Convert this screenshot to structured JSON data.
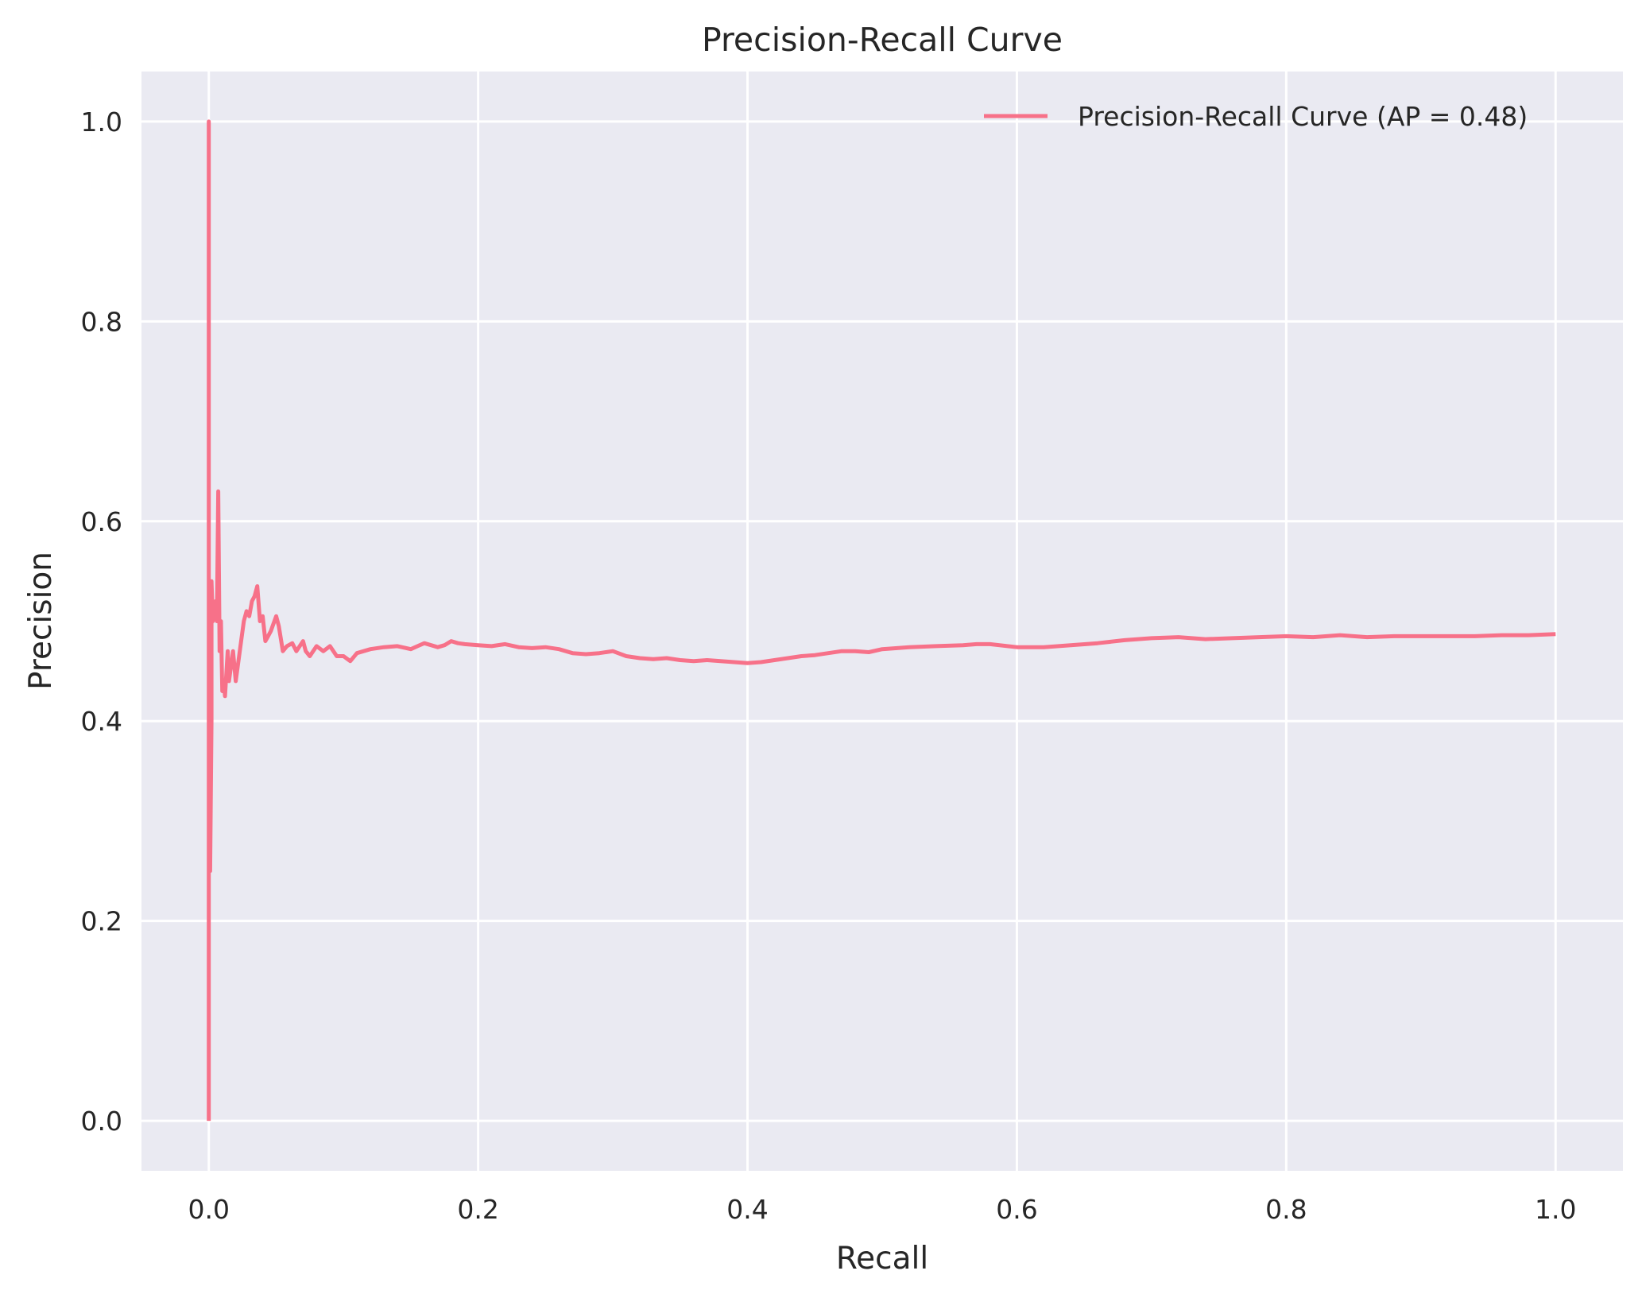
{
  "chart_data": {
    "type": "line",
    "title": "Precision-Recall Curve",
    "xlabel": "Recall",
    "ylabel": "Precision",
    "xlim": [
      -0.05,
      1.05
    ],
    "ylim": [
      -0.05,
      1.05
    ],
    "xticks": [
      0.0,
      0.2,
      0.4,
      0.6,
      0.8,
      1.0
    ],
    "yticks": [
      0.0,
      0.2,
      0.4,
      0.6,
      0.8,
      1.0
    ],
    "xtick_labels": [
      "0.0",
      "0.2",
      "0.4",
      "0.6",
      "0.8",
      "1.0"
    ],
    "ytick_labels": [
      "0.0",
      "0.2",
      "0.4",
      "0.6",
      "0.8",
      "1.0"
    ],
    "grid": true,
    "legend_position": "upper right",
    "background_color": "#eaeaf2",
    "grid_color": "#ffffff",
    "series": [
      {
        "name": "Precision-Recall Curve (AP = 0.48)",
        "color": "#f77189",
        "x": [
          0.0,
          0.0,
          0.0,
          0.001,
          0.001,
          0.002,
          0.002,
          0.003,
          0.004,
          0.005,
          0.006,
          0.007,
          0.008,
          0.009,
          0.01,
          0.011,
          0.012,
          0.014,
          0.015,
          0.016,
          0.018,
          0.02,
          0.022,
          0.024,
          0.026,
          0.028,
          0.03,
          0.032,
          0.034,
          0.036,
          0.038,
          0.04,
          0.042,
          0.044,
          0.046,
          0.05,
          0.052,
          0.055,
          0.058,
          0.062,
          0.065,
          0.07,
          0.072,
          0.075,
          0.08,
          0.085,
          0.09,
          0.095,
          0.1,
          0.105,
          0.11,
          0.115,
          0.12,
          0.13,
          0.14,
          0.15,
          0.155,
          0.16,
          0.17,
          0.175,
          0.18,
          0.185,
          0.19,
          0.2,
          0.21,
          0.22,
          0.23,
          0.24,
          0.25,
          0.26,
          0.27,
          0.28,
          0.29,
          0.3,
          0.31,
          0.32,
          0.33,
          0.34,
          0.35,
          0.36,
          0.37,
          0.38,
          0.39,
          0.4,
          0.41,
          0.42,
          0.43,
          0.44,
          0.45,
          0.46,
          0.47,
          0.48,
          0.49,
          0.5,
          0.52,
          0.54,
          0.56,
          0.57,
          0.58,
          0.6,
          0.62,
          0.64,
          0.66,
          0.68,
          0.7,
          0.72,
          0.74,
          0.76,
          0.78,
          0.8,
          0.82,
          0.84,
          0.85,
          0.86,
          0.88,
          0.9,
          0.92,
          0.94,
          0.96,
          0.98,
          1.0
        ],
        "y": [
          0.0,
          1.0,
          0.33,
          0.5,
          0.25,
          0.4,
          0.54,
          0.5,
          0.51,
          0.52,
          0.5,
          0.63,
          0.47,
          0.5,
          0.43,
          0.44,
          0.425,
          0.47,
          0.44,
          0.45,
          0.47,
          0.44,
          0.46,
          0.48,
          0.5,
          0.51,
          0.505,
          0.52,
          0.525,
          0.535,
          0.5,
          0.505,
          0.48,
          0.485,
          0.49,
          0.505,
          0.495,
          0.47,
          0.475,
          0.478,
          0.47,
          0.48,
          0.47,
          0.465,
          0.475,
          0.47,
          0.475,
          0.465,
          0.465,
          0.46,
          0.468,
          0.47,
          0.472,
          0.474,
          0.475,
          0.472,
          0.475,
          0.478,
          0.474,
          0.476,
          0.48,
          0.478,
          0.477,
          0.476,
          0.475,
          0.477,
          0.474,
          0.473,
          0.474,
          0.472,
          0.468,
          0.467,
          0.468,
          0.47,
          0.465,
          0.463,
          0.462,
          0.463,
          0.461,
          0.46,
          0.461,
          0.46,
          0.459,
          0.458,
          0.459,
          0.461,
          0.463,
          0.465,
          0.466,
          0.468,
          0.47,
          0.47,
          0.469,
          0.472,
          0.474,
          0.475,
          0.476,
          0.477,
          0.477,
          0.474,
          0.474,
          0.476,
          0.478,
          0.481,
          0.483,
          0.484,
          0.482,
          0.483,
          0.484,
          0.485,
          0.484,
          0.486,
          0.485,
          0.484,
          0.485,
          0.485,
          0.485,
          0.485,
          0.486,
          0.486,
          0.487
        ]
      }
    ]
  }
}
